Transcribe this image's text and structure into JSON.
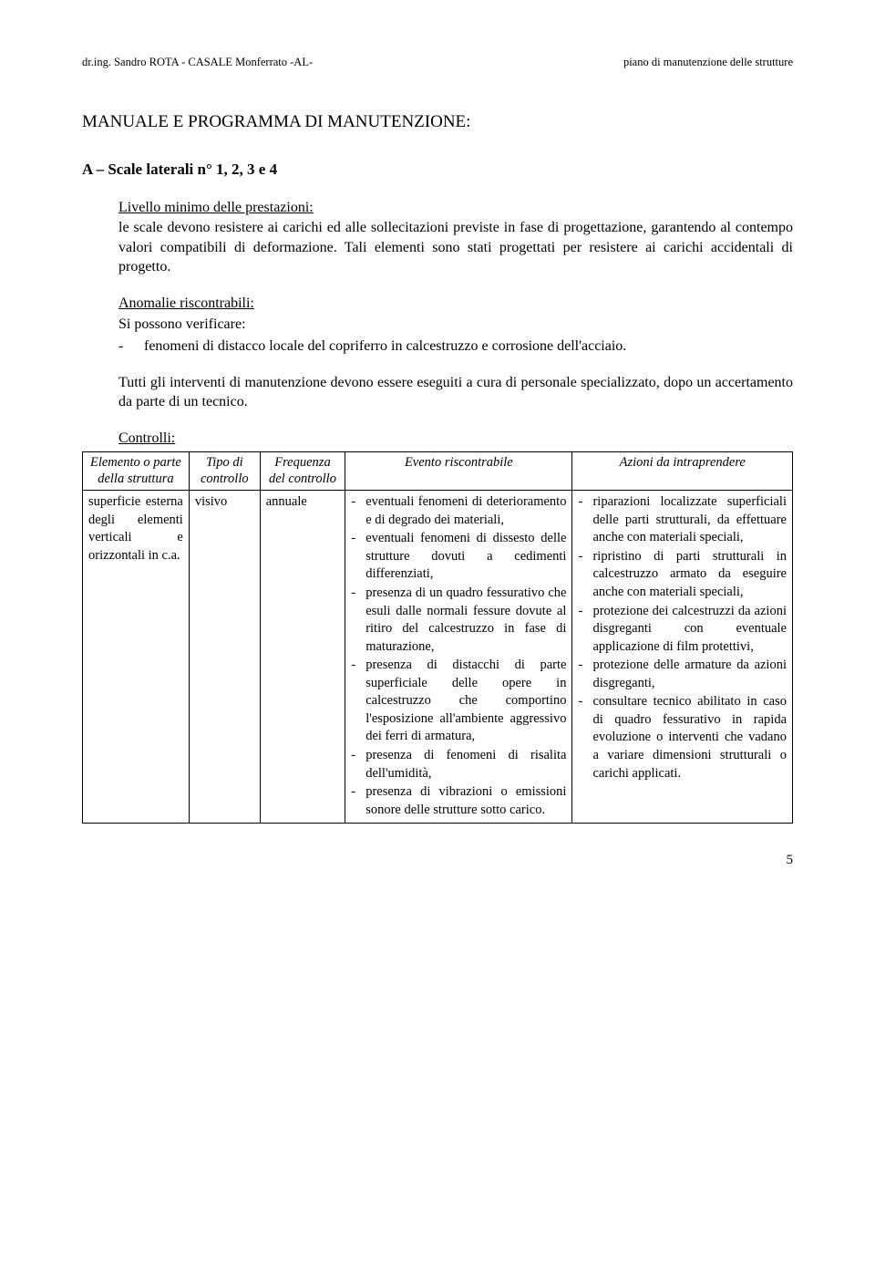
{
  "header": {
    "left": "dr.ing. Sandro ROTA - CASALE Monferrato -AL-",
    "right": "piano di manutenzione delle strutture"
  },
  "title": "MANUALE E PROGRAMMA DI MANUTENZIONE:",
  "section_label": "A – Scale laterali n° 1, 2, 3 e 4",
  "livello": {
    "heading": "Livello minimo delle prestazioni:",
    "text": "le scale devono resistere ai carichi ed alle sollecitazioni previste in fase di progettazione, garantendo al contempo valori compatibili di deformazione. Tali elementi sono stati progettati per resistere ai carichi accidentali di progetto."
  },
  "anomalie": {
    "heading": "Anomalie riscontrabili:",
    "intro": "Si possono verificare:",
    "items": [
      "fenomeni di distacco locale del copriferro in calcestruzzo e corrosione dell'acciaio."
    ]
  },
  "note": "Tutti gli interventi di manutenzione devono essere eseguiti a cura di personale specializzato, dopo un accertamento da parte di un tecnico.",
  "controlli": {
    "heading": "Controlli:",
    "columns": [
      "Elemento o parte della struttura",
      "Tipo di controllo",
      "Frequenza del controllo",
      "Evento riscontrabile",
      "Azioni da intraprendere"
    ],
    "row": {
      "elemento": "superficie esterna degli elementi verticali e orizzontali in c.a.",
      "tipo": "visivo",
      "frequenza": "annuale",
      "eventi": [
        "eventuali fenomeni di deterioramento e di degrado dei materiali,",
        "eventuali fenomeni di dissesto delle strutture dovuti a cedimenti differenziati,",
        "presenza di un quadro fessurativo che esuli dalle normali fessure dovute al ritiro del calcestruzzo in fase di maturazione,",
        "presenza di distacchi di parte superficiale delle opere in calcestruzzo che comportino l'esposizione all'ambiente aggressivo dei ferri di armatura,",
        "presenza di fenomeni di risalita dell'umidità,",
        "presenza di vibrazioni o emissioni sonore delle strutture sotto carico."
      ],
      "azioni": [
        "riparazioni localizzate superficiali delle parti strutturali, da effettuare anche con materiali speciali,",
        "ripristino di parti strutturali in calcestruzzo armato da eseguire anche con materiali speciali,",
        "protezione dei calcestruzzi da azioni disgreganti con eventuale applicazione di film protettivi,",
        "protezione delle armature da azioni disgreganti,",
        "consultare tecnico abilitato in caso di quadro fessurativo in rapida evoluzione o interventi che vadano a variare dimensioni strutturali o carichi applicati."
      ]
    }
  },
  "page_number": "5"
}
